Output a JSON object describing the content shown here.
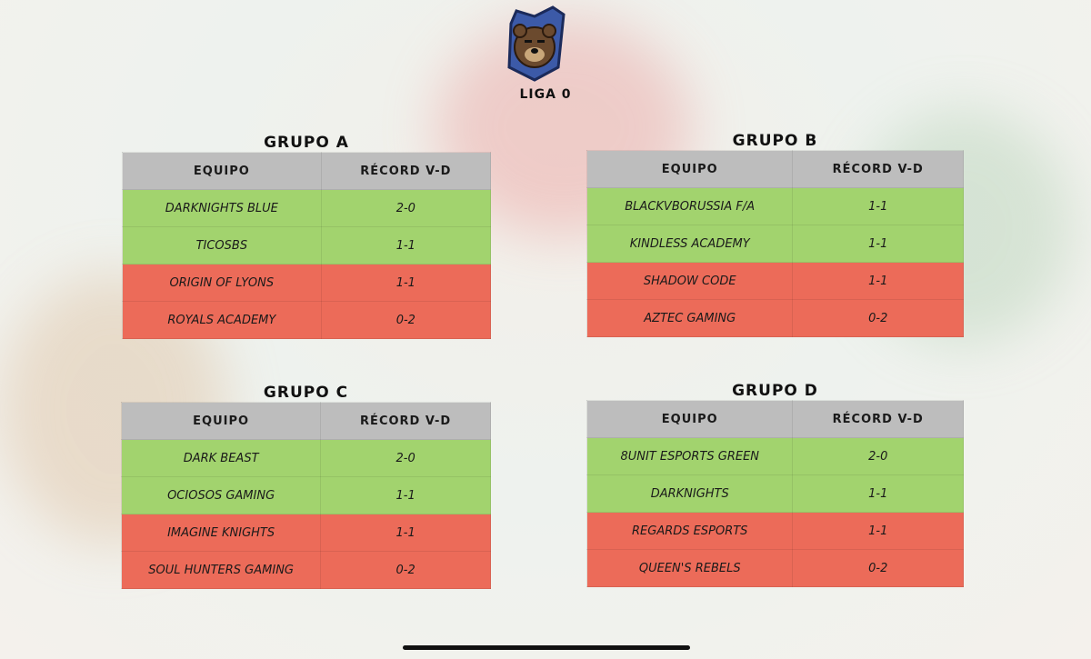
{
  "header": {
    "league": "LIGA 0"
  },
  "groups": [
    {
      "title": "GRUPO A",
      "columns": [
        "EQUIPO",
        "RÉCORD V-D"
      ],
      "rows": [
        [
          "DARKNIGHTS BLUE",
          "2-0"
        ],
        [
          "TICOSBS",
          "1-1"
        ],
        [
          "ORIGIN OF LYONS",
          "1-1"
        ],
        [
          "ROYALS ACADEMY",
          "0-2"
        ]
      ]
    },
    {
      "title": "GRUPO B",
      "columns": [
        "EQUIPO",
        "RÉCORD V-D"
      ],
      "rows": [
        [
          "BLACKVBORUSSIA F/A",
          "1-1"
        ],
        [
          "KINDLESS ACADEMY",
          "1-1"
        ],
        [
          "SHADOW CODE",
          "1-1"
        ],
        [
          "AZTEC GAMING",
          "0-2"
        ]
      ]
    },
    {
      "title": "GRUPO C",
      "columns": [
        "EQUIPO",
        "RÉCORD V-D"
      ],
      "rows": [
        [
          "DARK BEAST",
          "2-0"
        ],
        [
          "OCIOSOS GAMING",
          "1-1"
        ],
        [
          "IMAGINE KNIGHTS",
          "1-1"
        ],
        [
          "SOUL HUNTERS GAMING",
          "0-2"
        ]
      ]
    },
    {
      "title": "GRUPO D",
      "columns": [
        "EQUIPO",
        "RÉCORD V-D"
      ],
      "rows": [
        [
          "8UNIT ESPORTS GREEN",
          "2-0"
        ],
        [
          "DARKNIGHTS",
          "1-1"
        ],
        [
          "REGARDS ESPORTS",
          "1-1"
        ],
        [
          "QUEEN'S REBELS",
          "0-2"
        ]
      ]
    }
  ]
}
